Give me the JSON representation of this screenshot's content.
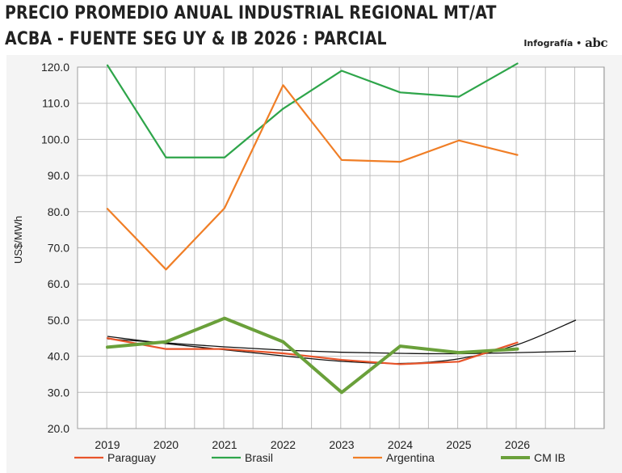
{
  "header": {
    "title_line1": "PRECIO PROMEDIO ANUAL INDUSTRIAL REGIONAL MT/AT",
    "title_line2": "ACBA - FUENTE SEG UY & IB 2026 : PARCIAL",
    "credit_label": "Infografía •",
    "credit_logo": "abc"
  },
  "chart_data": {
    "type": "line",
    "ylabel": "US$/MWh",
    "ylim": [
      20,
      120
    ],
    "yticks": [
      "120.0",
      "110.0",
      "100.0",
      "90.0",
      "80.0",
      "70.0",
      "60.0",
      "50.0",
      "40.0",
      "30.0",
      "20.0"
    ],
    "categories": [
      "2019",
      "2020",
      "2021",
      "2022",
      "2023",
      "2024",
      "2025",
      "2026"
    ],
    "grid": true,
    "legend_position": "bottom",
    "series": [
      {
        "name": "Paraguay",
        "color": "#e8542a",
        "width": 2.2,
        "values": [
          45.0,
          42.0,
          42.0,
          40.8,
          39.0,
          37.8,
          38.5,
          43.8
        ]
      },
      {
        "name": "Brasil",
        "color": "#2ea54a",
        "width": 2.2,
        "values": [
          120.5,
          95.0,
          95.0,
          108.5,
          119.0,
          113.0,
          111.8,
          121.0
        ]
      },
      {
        "name": "Argentina",
        "color": "#f07e26",
        "width": 2.2,
        "values": [
          80.8,
          64.0,
          81.0,
          115.0,
          94.3,
          93.8,
          99.7,
          95.7
        ]
      },
      {
        "name": "CM IB",
        "color": "#6aa03a",
        "width": 4,
        "values": [
          42.5,
          44.0,
          50.5,
          44.0,
          30.0,
          42.8,
          41.0,
          42.0
        ]
      }
    ],
    "trendlines": [
      {
        "color": "#111111",
        "width": 1.3,
        "values": [
          45.5,
          43.5,
          41.8,
          40.1,
          38.6,
          38.0,
          39.3,
          43.2,
          50.0
        ]
      },
      {
        "color": "#111111",
        "width": 1.3,
        "values": [
          44.8,
          43.7,
          42.6,
          41.7,
          41.1,
          40.8,
          40.7,
          41.0,
          41.4
        ]
      }
    ]
  }
}
